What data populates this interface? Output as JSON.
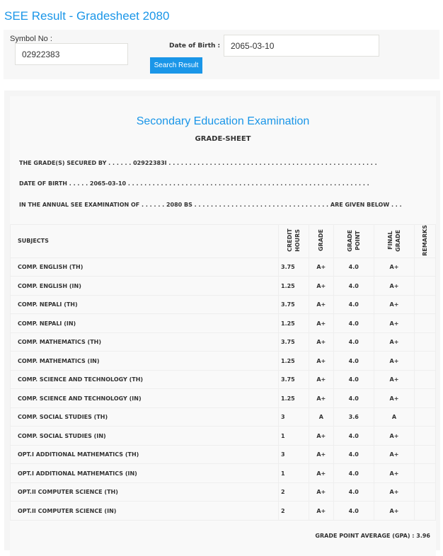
{
  "title": "SEE Result - Gradesheet 2080",
  "form": {
    "symbol_label": "Symbol No :",
    "symbol_value": "02922383",
    "dob_label": "Date of Birth :",
    "dob_value": "2065-03-10",
    "search_label": "Search Result"
  },
  "sheet": {
    "heading": "Secondary Education Examination",
    "subheading": "GRADE-SHEET",
    "line1": "THE GRADE(S) SECURED BY . . . . . . 02922383I . . . . . . . . . . . . . . . . . . . . . . . . . . . . . . . . . . . . . . . . . . . . . . . . . . .",
    "line2": "DATE OF BIRTH . . . . . 2065-03-10 . . . . . . . . . . . . . . . . . . . . . . . . . . . . . . . . . . . . . . . . . . . . . . . . . . . . . . . . . . .",
    "line3": "IN THE ANNUAL SEE EXAMINATION OF . . . . . . 2080 BS . . . . . . . . . . . . . . . . . . . . . . . . . . . . . . . . . ARE GIVEN BELOW . . .",
    "columns": [
      "SUBJECTS",
      "CREDIT HOURS",
      "GRADE",
      "GRADE POINT",
      "FINAL GRADE",
      "REMARKS"
    ],
    "rows": [
      {
        "subject": "COMP. ENGLISH (TH)",
        "credit": "3.75",
        "grade": "A+",
        "point": "4.0",
        "final": "A+"
      },
      {
        "subject": "COMP. ENGLISH (IN)",
        "credit": "1.25",
        "grade": "A+",
        "point": "4.0",
        "final": "A+"
      },
      {
        "subject": "COMP. NEPALI (TH)",
        "credit": "3.75",
        "grade": "A+",
        "point": "4.0",
        "final": "A+"
      },
      {
        "subject": "COMP. NEPALI (IN)",
        "credit": "1.25",
        "grade": "A+",
        "point": "4.0",
        "final": "A+"
      },
      {
        "subject": "COMP. MATHEMATICS (TH)",
        "credit": "3.75",
        "grade": "A+",
        "point": "4.0",
        "final": "A+"
      },
      {
        "subject": "COMP. MATHEMATICS (IN)",
        "credit": "1.25",
        "grade": "A+",
        "point": "4.0",
        "final": "A+"
      },
      {
        "subject": "COMP. SCIENCE AND TECHNOLOGY (TH)",
        "credit": "3.75",
        "grade": "A+",
        "point": "4.0",
        "final": "A+"
      },
      {
        "subject": "COMP. SCIENCE AND TECHNOLOGY (IN)",
        "credit": "1.25",
        "grade": "A+",
        "point": "4.0",
        "final": "A+"
      },
      {
        "subject": "COMP. SOCIAL STUDIES (TH)",
        "credit": "3",
        "grade": "A",
        "point": "3.6",
        "final": "A"
      },
      {
        "subject": "COMP. SOCIAL STUDIES (IN)",
        "credit": "1",
        "grade": "A+",
        "point": "4.0",
        "final": "A+"
      },
      {
        "subject": "OPT.I ADDITIONAL MATHEMATICS (TH)",
        "credit": "3",
        "grade": "A+",
        "point": "4.0",
        "final": "A+"
      },
      {
        "subject": "OPT.I ADDITIONAL MATHEMATICS (IN)",
        "credit": "1",
        "grade": "A+",
        "point": "4.0",
        "final": "A+"
      },
      {
        "subject": "OPT.II COMPUTER SCIENCE (TH)",
        "credit": "2",
        "grade": "A+",
        "point": "4.0",
        "final": "A+"
      },
      {
        "subject": "OPT.II COMPUTER SCIENCE (IN)",
        "credit": "2",
        "grade": "A+",
        "point": "4.0",
        "final": "A+"
      }
    ],
    "gpa": "GRADE POINT AVERAGE (GPA) : 3.96"
  },
  "colors": {
    "accent": "#1a96e8"
  }
}
